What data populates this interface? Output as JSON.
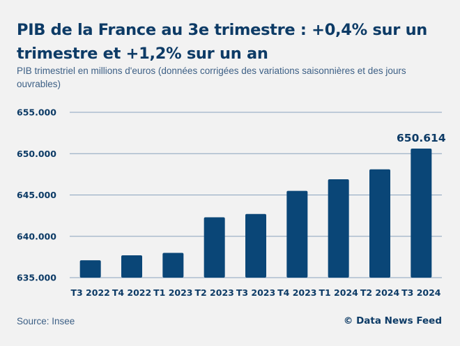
{
  "header": {
    "title": "PIB de la France au 3e trimestre : +0,4% sur un trimestre et +1,2% sur un an",
    "subtitle": "PIB trimestriel en millions d'euros (données corrigées des variations saisonnières et des jours ouvrables)"
  },
  "footer": {
    "source": "Source: Insee",
    "credit": "© Data News Feed"
  },
  "colors": {
    "bar": "#0a4677",
    "gridline": "#8aa3bd",
    "text": "#0d3b66",
    "background": "#f2f2f2"
  },
  "chart_data": {
    "type": "bar",
    "title": "PIB de la France au 3e trimestre : +0,4% sur un trimestre et +1,2% sur un an",
    "subtitle": "PIB trimestriel en millions d'euros (données corrigées des variations saisonnières et des jours ouvrables)",
    "xlabel": "",
    "ylabel": "",
    "categories": [
      "T3 2022",
      "T4 2022",
      "T1 2023",
      "T2 2023",
      "T3 2023",
      "T4 2023",
      "T1 2024",
      "T2 2024",
      "T3 2024"
    ],
    "values": [
      637100,
      637700,
      638000,
      642300,
      642700,
      645500,
      646900,
      648100,
      650614
    ],
    "ylim": [
      635000,
      655000
    ],
    "yticks": [
      635000,
      640000,
      645000,
      650000,
      655000
    ],
    "ytick_labels": [
      "635.000",
      "640.000",
      "645.000",
      "650.000",
      "655.000"
    ],
    "data_labels": [
      {
        "index": 8,
        "text": "650.614"
      }
    ],
    "grid": true,
    "legend": "none"
  }
}
